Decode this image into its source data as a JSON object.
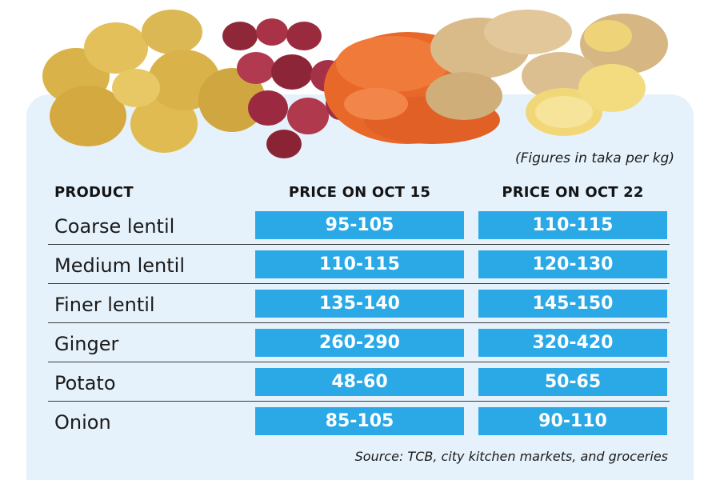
{
  "note": "(Figures in taka per kg)",
  "source": "Source: TCB, city kitchen markets, and groceries",
  "colors": {
    "cell_fill": "#2aa9e6",
    "panel_bg": "#e6f2fb"
  },
  "header": {
    "product": "PRODUCT",
    "oct15": "PRICE ON OCT 15",
    "oct22": "PRICE ON OCT 22"
  },
  "chart_data": {
    "type": "table",
    "columns": [
      "PRODUCT",
      "PRICE ON OCT 15",
      "PRICE ON OCT 22"
    ],
    "rows": [
      {
        "product": "Coarse lentil",
        "oct15": "95-105",
        "oct22": "110-115"
      },
      {
        "product": "Medium lentil",
        "oct15": "110-115",
        "oct22": "120-130"
      },
      {
        "product": "Finer lentil",
        "oct15": "135-140",
        "oct22": "145-150"
      },
      {
        "product": "Ginger",
        "oct15": "260-290",
        "oct22": "320-420"
      },
      {
        "product": "Potato",
        "oct15": "48-60",
        "oct22": "50-65"
      },
      {
        "product": "Onion",
        "oct15": "85-105",
        "oct22": "90-110"
      }
    ]
  }
}
